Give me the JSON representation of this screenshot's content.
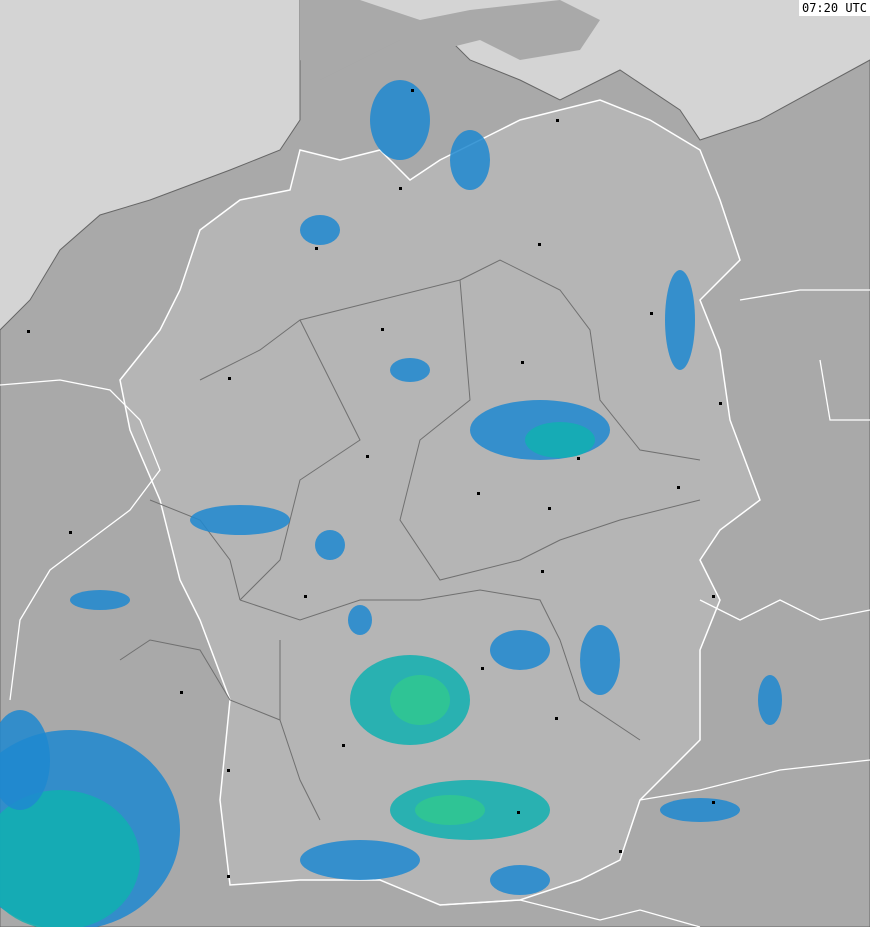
{
  "timestamp": "07:20 UTC",
  "colors": {
    "sea": "#d4d4d4",
    "land_outside": "#a9a9a9",
    "germany": "#b5b5b5",
    "border_country": "#ffffff",
    "border_state": "#707070",
    "rain_light": "#1e88d0",
    "rain_medium": "#10b0b0",
    "rain_heavy": "#30c890"
  }
}
